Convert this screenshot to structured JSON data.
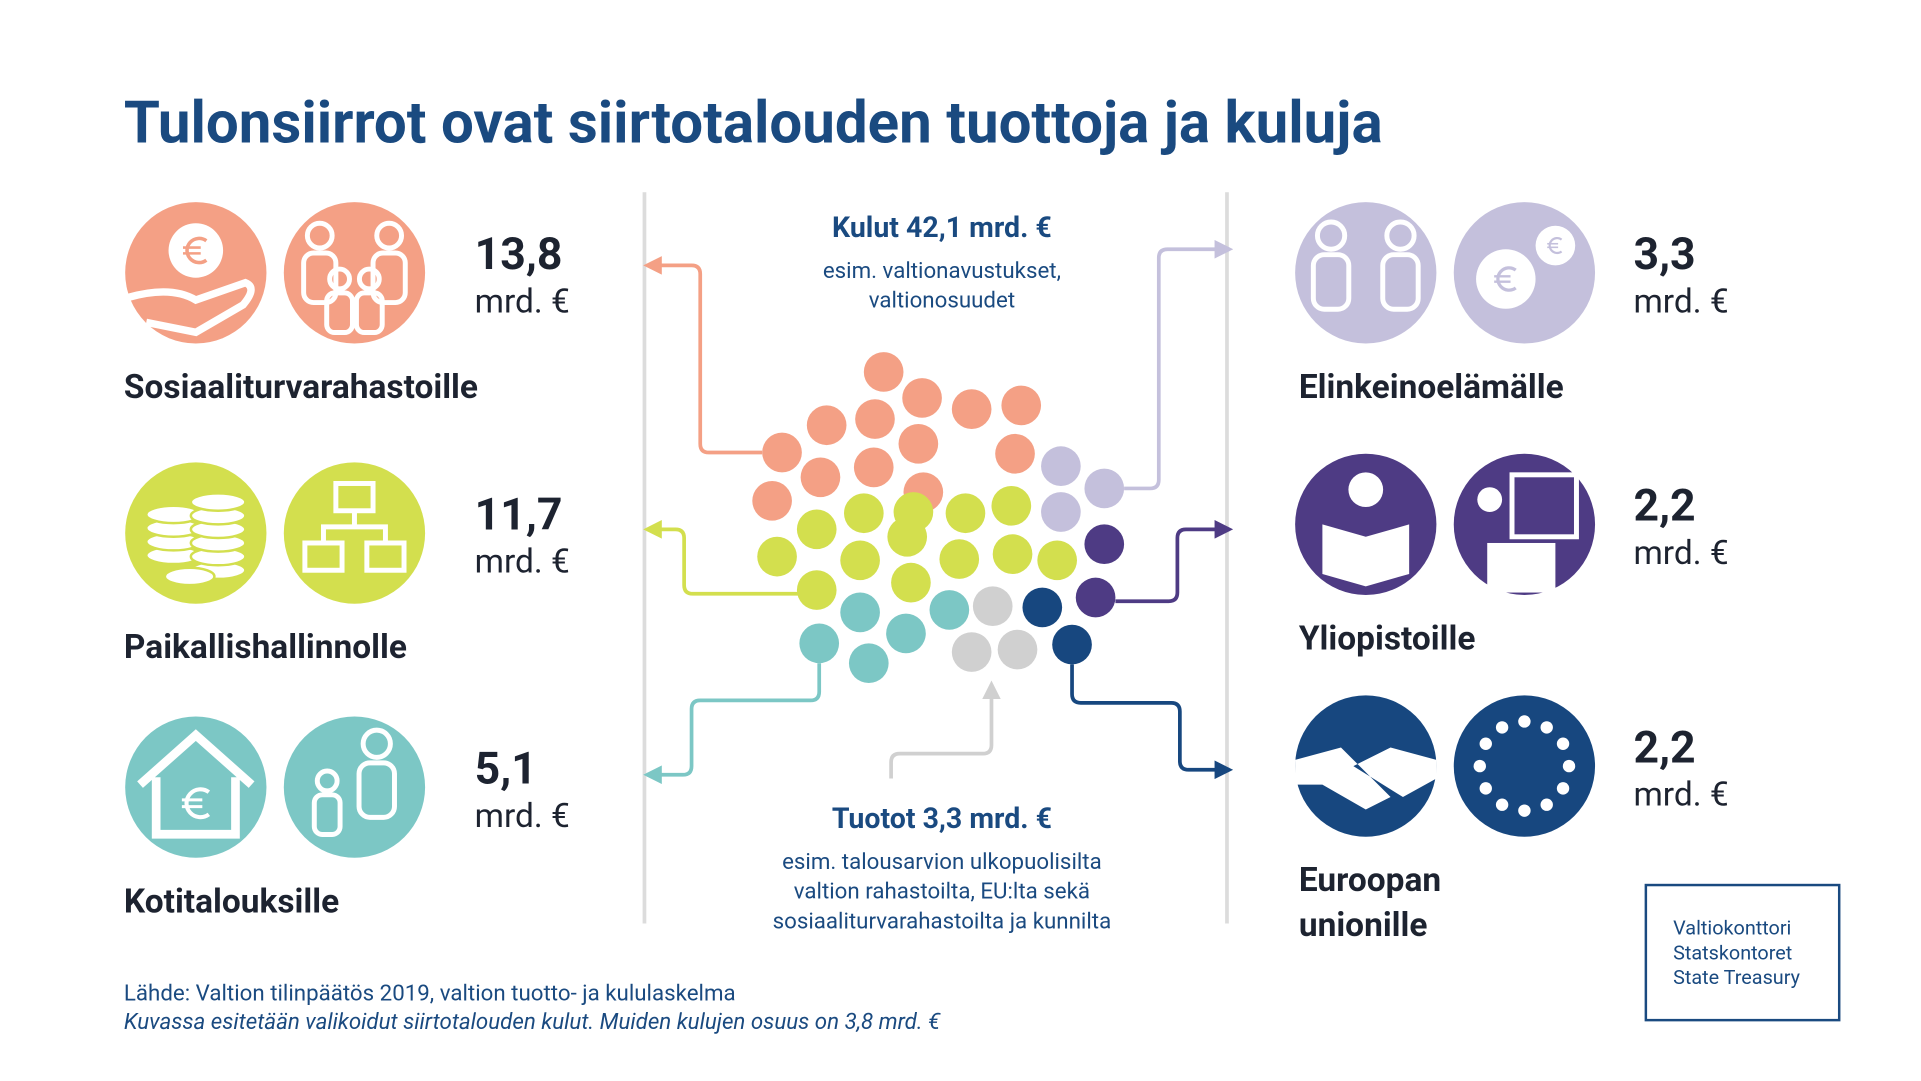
{
  "title": "Tulonsiirrot ovat siirtotalouden tuottoja ja kuluja",
  "recipients": [
    {
      "value": "13,8",
      "unit": "mrd. €",
      "label": [
        "Sosiaaliturvarahastoille"
      ]
    },
    {
      "value": "11,7",
      "unit": "mrd. €",
      "label": [
        "Paikallishallinnolle"
      ]
    },
    {
      "value": "5,1",
      "unit": "mrd. €",
      "label": [
        "Kotitalouksille"
      ]
    },
    {
      "value": "3,3",
      "unit": "mrd. €",
      "label": [
        "Elinkeinoelämälle"
      ]
    },
    {
      "value": "2,2",
      "unit": "mrd. €",
      "label": [
        "Yliopistoille"
      ]
    },
    {
      "value": "2,2",
      "unit": "mrd. €",
      "label": [
        "Euroopan",
        "unionille"
      ]
    }
  ],
  "expenses": {
    "heading": "Kulut 42,1 mrd. €",
    "text": [
      "esim. valtionavustukset,",
      "valtionosuudet"
    ]
  },
  "revenues": {
    "heading": "Tuotot 3,3 mrd. €",
    "text": [
      "esim. talousarvion ulkopuolisilta",
      "valtion rahastoilta, EU:lta sekä",
      "sosiaaliturvarahastoilta ja kunnilta"
    ]
  },
  "source": "Lähde: Valtion tilinpäätös 2019, valtion tuotto- ja kululaskelma",
  "note": "Kuvassa esitetään valikoidut siirtotalouden kulut. Muiden kulujen osuus on 3,8 mrd. €",
  "logo": [
    "Valtiokonttori",
    "Statskontoret",
    "State Treasury"
  ]
}
